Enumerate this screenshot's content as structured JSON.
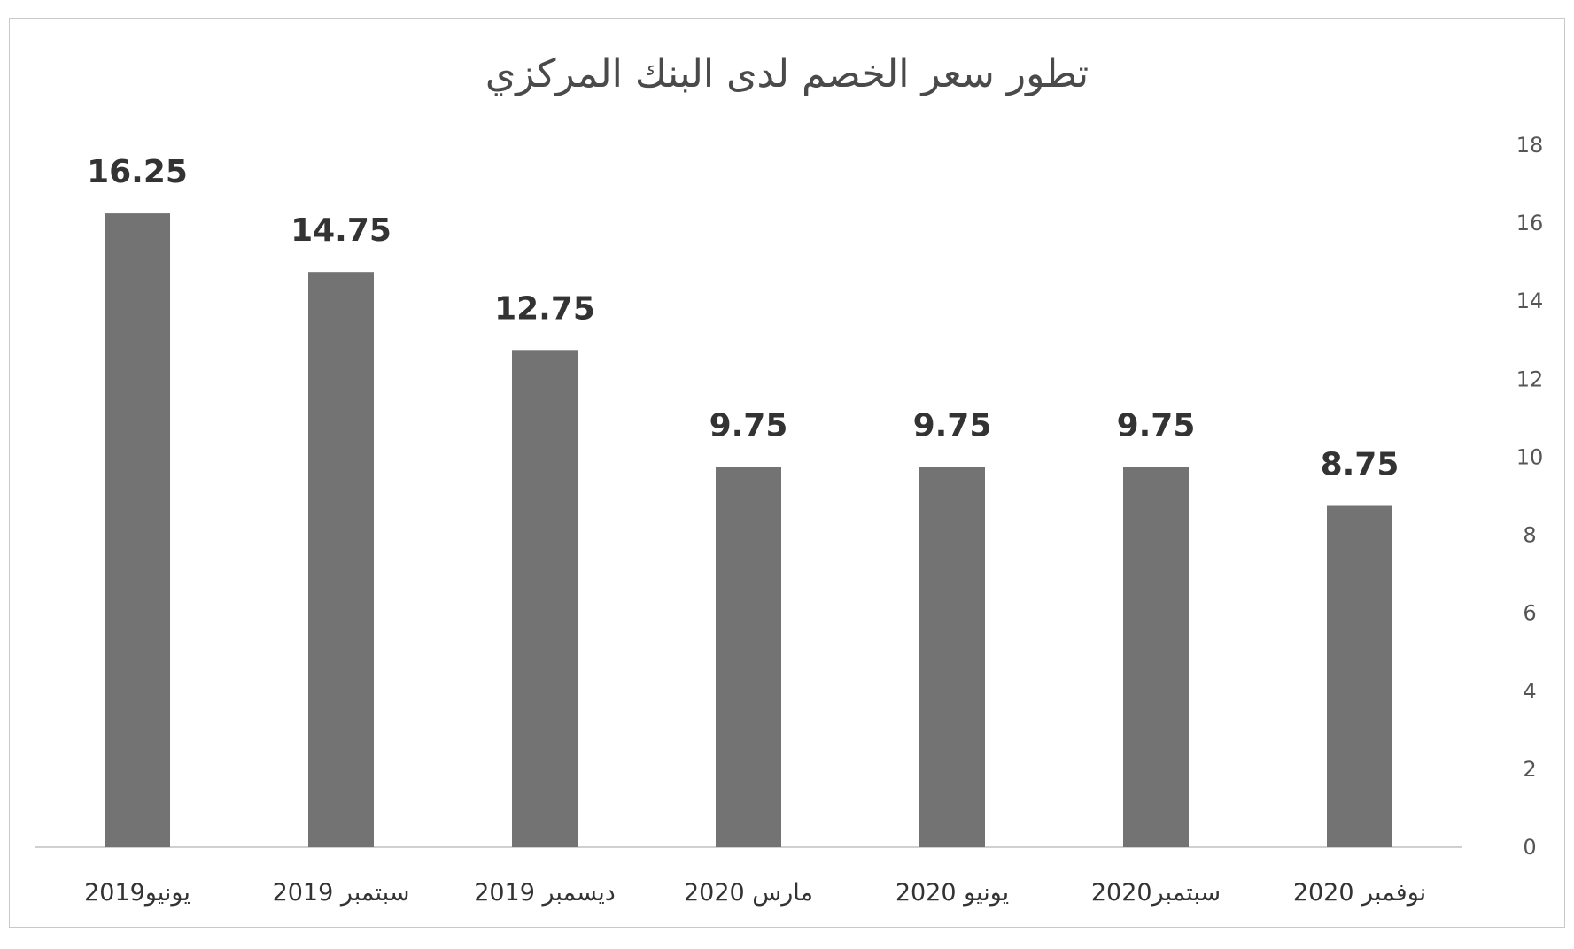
{
  "chart_data": {
    "type": "bar",
    "title": "تطور سعر الخصم لدى البنك المركزي",
    "categories": [
      "يونيو2019",
      "سبتمبر 2019",
      "ديسمبر 2019",
      "مارس 2020",
      "يونيو 2020",
      "سبتمبر2020",
      "نوفمبر 2020"
    ],
    "values": [
      16.25,
      14.75,
      12.75,
      9.75,
      9.75,
      9.75,
      8.75
    ],
    "data_labels": [
      "16.25",
      "14.75",
      "12.75",
      "9.75",
      "9.75",
      "9.75",
      "8.75"
    ],
    "ylim": [
      0,
      18
    ],
    "y_ticks": [
      0,
      2,
      4,
      6,
      8,
      10,
      12,
      14,
      16,
      18
    ],
    "y_axis_side": "right",
    "grid": false,
    "legend": "none",
    "bar_color": "#737373",
    "axis_color": "#d0d0d0"
  }
}
